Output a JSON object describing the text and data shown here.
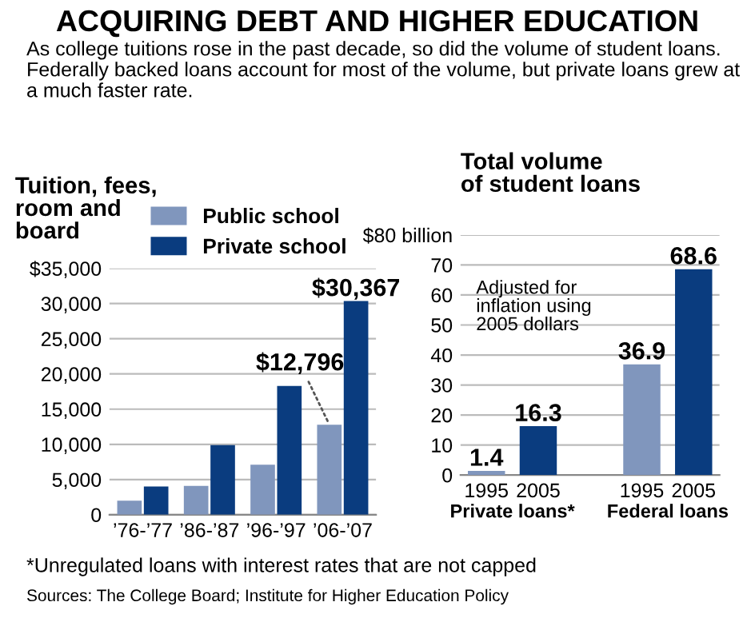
{
  "chart_data": [
    {
      "type": "bar",
      "title": "ACQUIRING DEBT AND HIGHER EDUCATION",
      "subtitle": "As college tuitions rose in the past decade, so did the volume of student loans. Federally backed loans account for most of the volume, but private loans grew at a much faster rate.",
      "ylabel": "Tuition, fees,\nroom and\nboard",
      "categories": [
        "’76-’77",
        "’86-’87",
        "’96-’97",
        "’06-’07"
      ],
      "series": [
        {
          "name": "Public school",
          "color": "#8096bd",
          "values": [
            2000,
            4100,
            7100,
            12796
          ],
          "value_labels": [
            null,
            null,
            null,
            "$12,796"
          ]
        },
        {
          "name": "Private school",
          "color": "#0a3c7f",
          "values": [
            4000,
            9900,
            18300,
            30367
          ],
          "value_labels": [
            null,
            null,
            null,
            "$30,367"
          ]
        }
      ],
      "ylim": [
        0,
        35000
      ],
      "yticks": [
        0,
        {
          "value": 5000,
          "label": "5,000"
        },
        {
          "value": 10000,
          "label": "10,000"
        },
        {
          "value": 15000,
          "label": "15,000"
        },
        {
          "value": 20000,
          "label": "20,000"
        },
        {
          "value": 25000,
          "label": "25,000"
        },
        {
          "value": 30000,
          "label": "30,000"
        },
        {
          "value": 35000,
          "label": "$35,000"
        }
      ],
      "grid": "y",
      "legend": "top right"
    },
    {
      "type": "bar",
      "title": "Total volume\nof student loans",
      "categories": [
        "1995",
        "2005",
        null,
        "1995",
        "2005"
      ],
      "values": [
        1.4,
        16.3,
        null,
        36.9,
        68.6
      ],
      "colors": [
        "#8096bd",
        "#0a3c7f",
        "#ffffff",
        "#8096bd",
        "#0a3c7f"
      ],
      "data_labels": true,
      "annotations": [
        "Adjusted for\ninflation using\n2005 dollars",
        "Private loans*",
        "Federal loans",
        "*Unregulated loans with interest rates that are not capped",
        "Sources: The College Board; Institute for Higher Education Policy"
      ],
      "ylim": [
        0,
        80
      ],
      "yticks": [
        0,
        10,
        20,
        30,
        40,
        50,
        60,
        70,
        {
          "value": 80,
          "label": "$80 billion"
        }
      ],
      "grid": "y"
    }
  ]
}
